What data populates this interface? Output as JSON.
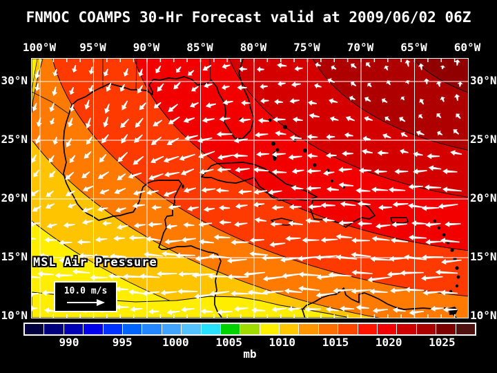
{
  "title": "FNMOC COAMPS 30-Hr Forecast valid at 2009/06/02 06Z",
  "axes": {
    "longitude_labels": [
      "100°W",
      "95°W",
      "90°W",
      "85°W",
      "80°W",
      "75°W",
      "70°W",
      "65°W",
      "60°W"
    ],
    "latitude_labels": [
      "30°N",
      "25°N",
      "20°N",
      "15°N",
      "10°N"
    ]
  },
  "map": {
    "overlay_label": "MSL Air Pressure",
    "wind_scale_label": "10.0 m/s"
  },
  "colorbar": {
    "units_label": "mb",
    "tick_labels": [
      "990",
      "995",
      "1000",
      "1005",
      "1010",
      "1015",
      "1020",
      "1025"
    ],
    "cell_colors": [
      "#000041",
      "#00007d",
      "#0000b4",
      "#0000eb",
      "#0032ff",
      "#0064ff",
      "#2387ff",
      "#41a5ff",
      "#55c3ff",
      "#28e1ff",
      "#00d200",
      "#a0dc00",
      "#fff000",
      "#ffc800",
      "#ff9600",
      "#ff6e00",
      "#ff4600",
      "#ff1400",
      "#f00000",
      "#cd0000",
      "#aa0000",
      "#7d0000",
      "#4f1010"
    ]
  },
  "pressure_field": {
    "base_color": "#ffee00",
    "contour_color": "#000000",
    "grid_color": "#ffffff",
    "arrow_color": "#ffffff",
    "bands": [
      {
        "radius": 515,
        "color": "#ffc400"
      },
      {
        "radius": 458,
        "color": "#ff7a00"
      },
      {
        "radius": 410,
        "color": "#ff3a00"
      },
      {
        "radius": 345,
        "color": "#f20000"
      },
      {
        "radius": 270,
        "color": "#d40000"
      },
      {
        "radius": 205,
        "color": "#ae0000"
      },
      {
        "radius": 130,
        "color": "#900000"
      },
      {
        "radius": 60,
        "color": "#7a0000"
      }
    ]
  },
  "chart_data": {
    "type": "heatmap",
    "title": "FNMOC COAMPS 30-Hr Forecast valid at 2009/06/02 06Z",
    "variable": "MSL Air Pressure",
    "units": "mb",
    "x_tick_labels": [
      "100°W",
      "95°W",
      "90°W",
      "85°W",
      "80°W",
      "75°W",
      "70°W",
      "65°W",
      "60°W"
    ],
    "y_tick_labels": [
      "30°N",
      "25°N",
      "20°N",
      "15°N",
      "10°N"
    ],
    "colorbar_values": [
      990,
      995,
      1000,
      1005,
      1010,
      1015,
      1020,
      1025
    ],
    "approx_value_range_mb": [
      1005,
      1025
    ],
    "wind_reference_label": "10.0 m/s",
    "legend_position": "bottom",
    "gradient_description": "lowest pressure (yellow, ~1005 mb) over Central America in the southwest rising to highest pressure (dark red, ~1024 mb) over the western Atlantic in the northeast; white easterly trade-wind arrows across the Caribbean and Gulf of Mexico"
  }
}
